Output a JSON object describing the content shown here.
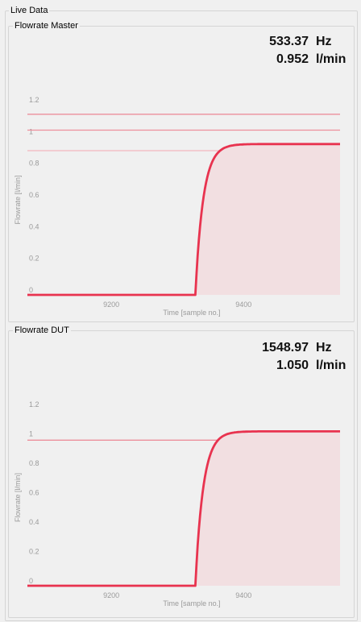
{
  "group_title": "Live Data",
  "colors": {
    "line": "#e8334f",
    "fill": "#f2dfe1",
    "ref": "#ec8f9b",
    "ref_light": "#f2b6be"
  },
  "panels": [
    {
      "title": "Flowrate Master",
      "frequency": "533.37",
      "frequency_unit": "Hz",
      "flow": "0.952",
      "flow_unit": "l/min",
      "chart_data": {
        "type": "line",
        "xlabel": "Time [sample no.]",
        "ylabel": "Flowrate [l/min]",
        "xlim": [
          9073,
          9546
        ],
        "ylim": [
          0,
          1.2
        ],
        "x_ticks": [
          "9200",
          "9400"
        ],
        "y_ticks": [
          "0",
          "0.2",
          "0.4",
          "0.6",
          "0.8",
          "1",
          "1.2"
        ],
        "series": [
          {
            "step_at": 9327,
            "steady_value": 0.952,
            "filled": true
          }
        ],
        "reference_lines": [
          1.14,
          1.04,
          0.91
        ]
      }
    },
    {
      "title": "Flowrate DUT",
      "frequency": "1548.97",
      "frequency_unit": "Hz",
      "flow": "1.050",
      "flow_unit": "l/min",
      "chart_data": {
        "type": "line",
        "xlabel": "Time [sample no.]",
        "ylabel": "Flowrate [l/min]",
        "xlim": [
          9073,
          9546
        ],
        "ylim": [
          0,
          1.2
        ],
        "x_ticks": [
          "9200",
          "9400"
        ],
        "y_ticks": [
          "0",
          "0.2",
          "0.4",
          "0.6",
          "0.8",
          "1",
          "1.2"
        ],
        "series": [
          {
            "step_at": 9327,
            "steady_value": 1.05,
            "filled": true
          }
        ],
        "reference_lines": [
          0.99
        ]
      }
    }
  ]
}
